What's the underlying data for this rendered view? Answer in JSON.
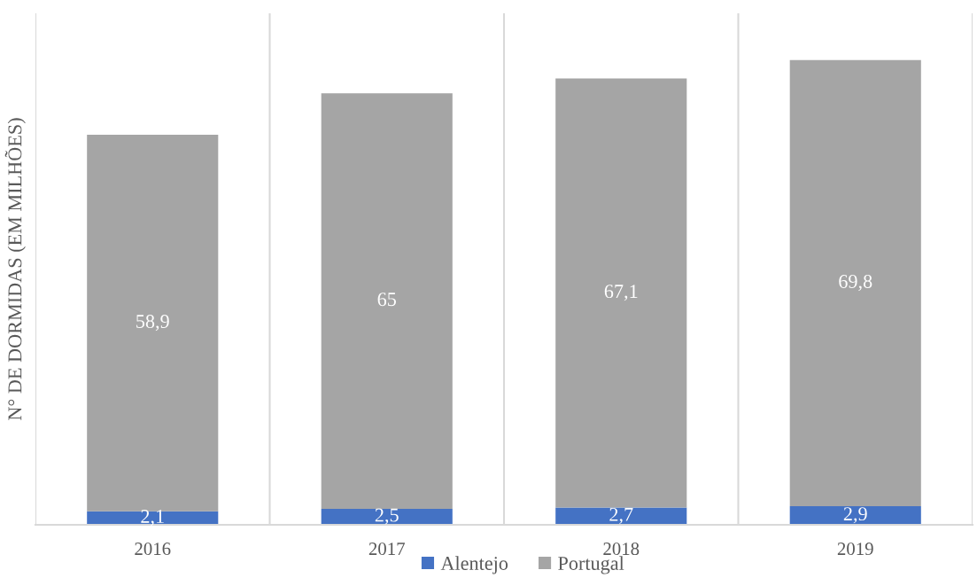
{
  "chart_data": {
    "type": "bar",
    "stacked": true,
    "ylabel": "N° DE DORMIDAS (EM MILHÕES)",
    "categories": [
      "2016",
      "2017",
      "2018",
      "2019"
    ],
    "series": [
      {
        "name": "Alentejo",
        "color": "#4472c4",
        "values": [
          2.1,
          2.5,
          2.7,
          2.9
        ],
        "value_labels": [
          "2,1",
          "2,5",
          "2,7",
          "2,9"
        ]
      },
      {
        "name": "Portugal",
        "color": "#a5a5a5",
        "values": [
          58.9,
          65,
          67.1,
          69.8
        ],
        "value_labels": [
          "58,9",
          "65",
          "67,1",
          "69,8"
        ]
      }
    ],
    "ylim": [
      0,
      80
    ],
    "grid": "x",
    "legend": "bottom",
    "tick_labels": "x"
  }
}
